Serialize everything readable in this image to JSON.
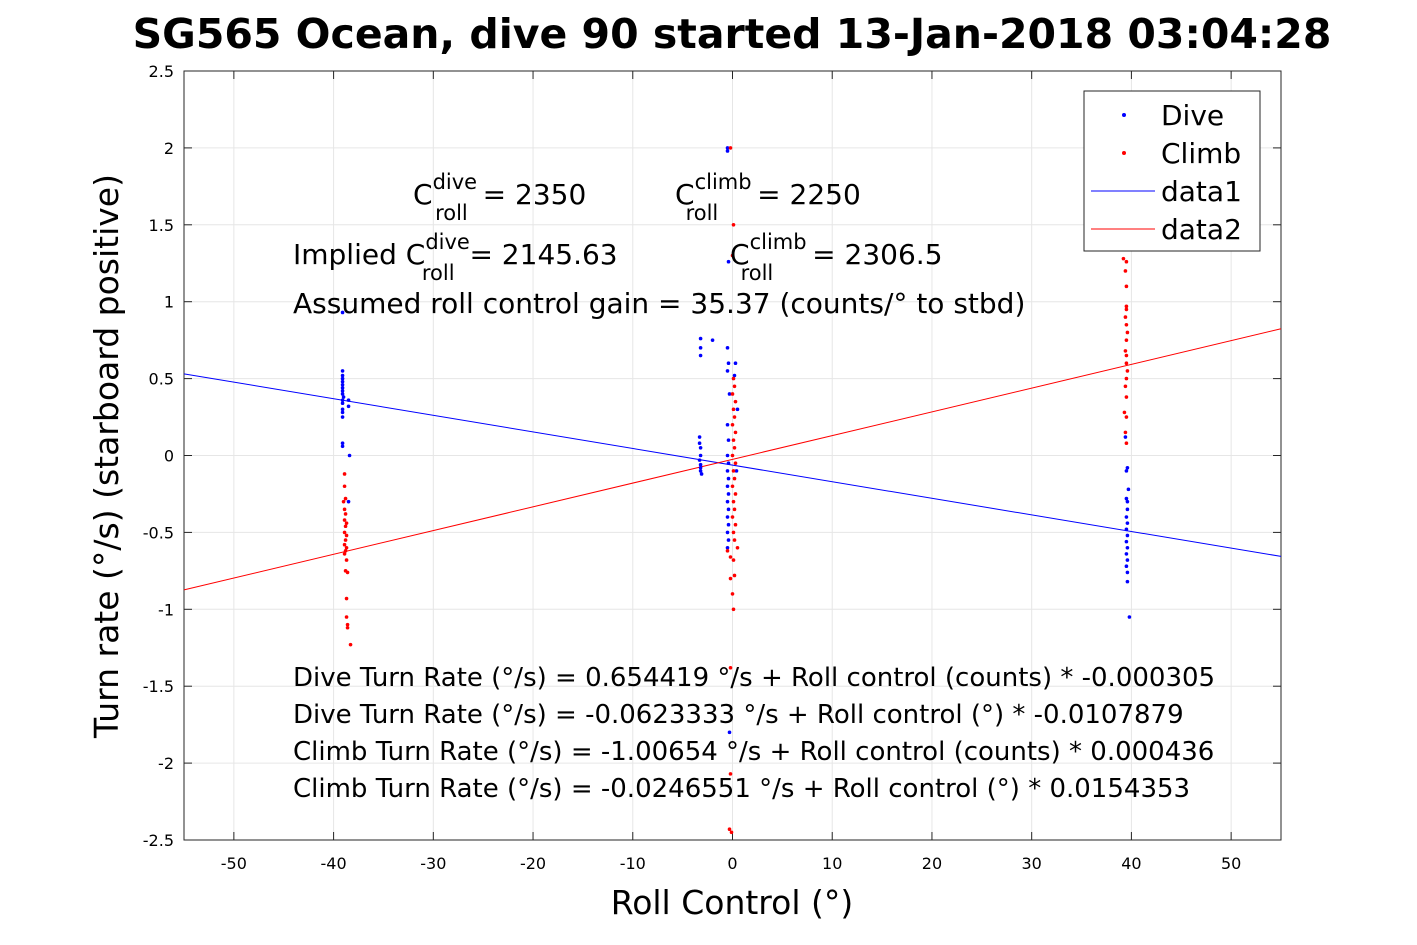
{
  "chart_data": {
    "type": "scatter",
    "title": "SG565 Ocean, dive 90 started 13-Jan-2018 03:04:28",
    "xlabel": "Roll Control (°)",
    "ylabel": "Turn rate (°/s) (starboard positive)",
    "xlim": [
      -55,
      55
    ],
    "ylim": [
      -2.5,
      2.5
    ],
    "xticks": [
      -50,
      -40,
      -30,
      -20,
      -10,
      0,
      10,
      20,
      30,
      40,
      50
    ],
    "yticks": [
      -2.5,
      -2,
      -1.5,
      -1,
      -0.5,
      0,
      0.5,
      1,
      1.5,
      2,
      2.5
    ],
    "grid": true,
    "legend_position": "top-right",
    "series": [
      {
        "name": "Dive",
        "kind": "points",
        "color": "#0000ff",
        "points": [
          [
            -39.1,
            0.93
          ],
          [
            -39.1,
            0.55
          ],
          [
            -39.1,
            0.52
          ],
          [
            -39.1,
            0.5
          ],
          [
            -39.1,
            0.48
          ],
          [
            -39.1,
            0.46
          ],
          [
            -39.1,
            0.44
          ],
          [
            -39.1,
            0.42
          ],
          [
            -39.1,
            0.4
          ],
          [
            -39.0,
            0.38
          ],
          [
            -39.1,
            0.36
          ],
          [
            -39.1,
            0.34
          ],
          [
            -39.1,
            0.3
          ],
          [
            -39.1,
            0.28
          ],
          [
            -39.1,
            0.25
          ],
          [
            -39.1,
            0.08
          ],
          [
            -39.1,
            0.06
          ],
          [
            -38.5,
            0.36
          ],
          [
            -38.5,
            0.32
          ],
          [
            -38.4,
            0.0
          ],
          [
            -38.5,
            -0.3
          ],
          [
            -3.2,
            0.76
          ],
          [
            -3.2,
            0.7
          ],
          [
            -3.2,
            0.65
          ],
          [
            -3.3,
            0.12
          ],
          [
            -3.3,
            0.08
          ],
          [
            -3.2,
            0.05
          ],
          [
            -3.2,
            0.0
          ],
          [
            -3.3,
            -0.03
          ],
          [
            -3.2,
            -0.06
          ],
          [
            -3.2,
            -0.08
          ],
          [
            -3.2,
            -0.1
          ],
          [
            -3.1,
            -0.12
          ],
          [
            -2.0,
            0.75
          ],
          [
            -0.5,
            2.0
          ],
          [
            -0.5,
            1.98
          ],
          [
            -0.4,
            1.26
          ],
          [
            -0.5,
            0.7
          ],
          [
            -0.4,
            0.6
          ],
          [
            -0.5,
            0.55
          ],
          [
            -0.3,
            0.4
          ],
          [
            -0.5,
            0.2
          ],
          [
            -0.4,
            0.1
          ],
          [
            -0.5,
            0.0
          ],
          [
            -0.4,
            -0.05
          ],
          [
            -0.5,
            -0.1
          ],
          [
            -0.4,
            -0.15
          ],
          [
            -0.5,
            -0.2
          ],
          [
            -0.4,
            -0.25
          ],
          [
            -0.5,
            -0.3
          ],
          [
            -0.4,
            -0.35
          ],
          [
            -0.5,
            -0.4
          ],
          [
            -0.4,
            -0.45
          ],
          [
            -0.5,
            -0.5
          ],
          [
            -0.4,
            -0.55
          ],
          [
            -0.5,
            -0.6
          ],
          [
            -0.3,
            -1.8
          ],
          [
            0.3,
            0.6
          ],
          [
            0.5,
            0.3
          ],
          [
            0.4,
            -0.1
          ],
          [
            0.2,
            0.52
          ],
          [
            39.4,
            0.12
          ],
          [
            39.6,
            -0.08
          ],
          [
            39.5,
            -0.1
          ],
          [
            39.7,
            -0.22
          ],
          [
            39.5,
            -0.28
          ],
          [
            39.6,
            -0.3
          ],
          [
            39.6,
            -0.35
          ],
          [
            39.5,
            -0.4
          ],
          [
            39.6,
            -0.44
          ],
          [
            39.5,
            -0.48
          ],
          [
            39.6,
            -0.52
          ],
          [
            39.5,
            -0.56
          ],
          [
            39.6,
            -0.6
          ],
          [
            39.5,
            -0.64
          ],
          [
            39.6,
            -0.68
          ],
          [
            39.5,
            -0.72
          ],
          [
            39.6,
            -0.76
          ],
          [
            39.6,
            -0.82
          ],
          [
            39.8,
            -1.05
          ]
        ]
      },
      {
        "name": "Climb",
        "kind": "points",
        "color": "#ff0000",
        "points": [
          [
            -38.9,
            -0.12
          ],
          [
            -38.9,
            -0.2
          ],
          [
            -38.8,
            -0.28
          ],
          [
            -39.0,
            -0.3
          ],
          [
            -38.9,
            -0.35
          ],
          [
            -38.8,
            -0.38
          ],
          [
            -38.9,
            -0.42
          ],
          [
            -38.7,
            -0.44
          ],
          [
            -38.8,
            -0.46
          ],
          [
            -38.9,
            -0.5
          ],
          [
            -38.7,
            -0.52
          ],
          [
            -38.8,
            -0.55
          ],
          [
            -38.9,
            -0.58
          ],
          [
            -38.7,
            -0.6
          ],
          [
            -38.8,
            -0.62
          ],
          [
            -38.9,
            -0.64
          ],
          [
            -38.7,
            -0.68
          ],
          [
            -38.8,
            -0.75
          ],
          [
            -38.6,
            -0.76
          ],
          [
            -38.7,
            -0.93
          ],
          [
            -38.7,
            -1.05
          ],
          [
            -38.6,
            -1.1
          ],
          [
            -38.6,
            -1.12
          ],
          [
            -38.3,
            -1.23
          ],
          [
            -0.2,
            2.0
          ],
          [
            0.1,
            1.5
          ],
          [
            0.0,
            1.3
          ],
          [
            0.1,
            0.5
          ],
          [
            0.2,
            0.45
          ],
          [
            0.0,
            0.4
          ],
          [
            0.3,
            0.35
          ],
          [
            0.1,
            0.3
          ],
          [
            0.2,
            0.25
          ],
          [
            0.0,
            0.2
          ],
          [
            0.3,
            0.15
          ],
          [
            0.1,
            0.1
          ],
          [
            0.2,
            0.05
          ],
          [
            0.0,
            0.0
          ],
          [
            0.3,
            -0.05
          ],
          [
            0.1,
            -0.1
          ],
          [
            0.2,
            -0.15
          ],
          [
            0.0,
            -0.2
          ],
          [
            0.3,
            -0.25
          ],
          [
            0.1,
            -0.3
          ],
          [
            0.2,
            -0.35
          ],
          [
            0.0,
            -0.4
          ],
          [
            0.3,
            -0.45
          ],
          [
            0.1,
            -0.5
          ],
          [
            0.2,
            -0.55
          ],
          [
            -0.5,
            -0.62
          ],
          [
            0.5,
            -0.6
          ],
          [
            -0.2,
            -0.66
          ],
          [
            0.1,
            -0.68
          ],
          [
            0.2,
            -0.78
          ],
          [
            -0.2,
            -0.8
          ],
          [
            0.0,
            -0.9
          ],
          [
            0.1,
            -1.0
          ],
          [
            -0.2,
            -1.38
          ],
          [
            -0.2,
            -2.07
          ],
          [
            -0.1,
            -2.45
          ],
          [
            -0.3,
            -2.43
          ],
          [
            39.2,
            1.28
          ],
          [
            39.5,
            1.26
          ],
          [
            39.4,
            1.2
          ],
          [
            39.5,
            1.1
          ],
          [
            39.5,
            0.97
          ],
          [
            39.5,
            0.95
          ],
          [
            39.4,
            0.9
          ],
          [
            39.5,
            0.85
          ],
          [
            39.6,
            0.8
          ],
          [
            39.5,
            0.75
          ],
          [
            39.4,
            0.68
          ],
          [
            39.5,
            0.65
          ],
          [
            39.5,
            0.6
          ],
          [
            39.6,
            0.55
          ],
          [
            39.5,
            0.5
          ],
          [
            39.4,
            0.45
          ],
          [
            39.5,
            0.38
          ],
          [
            39.3,
            0.28
          ],
          [
            39.5,
            0.25
          ],
          [
            39.4,
            0.15
          ],
          [
            39.5,
            0.08
          ]
        ]
      },
      {
        "name": "data1",
        "kind": "line",
        "color": "#0000ff",
        "x": [
          -55,
          55
        ],
        "y": [
          0.531,
          -0.656
        ]
      },
      {
        "name": "data2",
        "kind": "line",
        "color": "#ff0000",
        "x": [
          -55,
          55
        ],
        "y": [
          -0.874,
          0.824
        ]
      }
    ],
    "annotations": {
      "c_roll_dive_base": "C",
      "c_roll_dive_sup": "dive",
      "c_roll_dive_sub": "roll",
      "c_roll_dive_value": " = 2350",
      "c_roll_climb_base": "C",
      "c_roll_climb_sup": "climb",
      "c_roll_climb_sub": "roll",
      "c_roll_climb_value": " = 2250",
      "implied_prefix": "Implied C",
      "implied_dive_sup": "dive",
      "implied_dive_sub": "roll",
      "implied_dive_value": " = 2145.63",
      "implied_climb_base": "C",
      "implied_climb_sup": "climb",
      "implied_climb_sub": "roll",
      "implied_climb_value": " = 2306.5",
      "gain_line": "Assumed roll control gain = 35.37 (counts/° to stbd)",
      "equations": [
        "Dive Turn Rate (°/s) = 0.654419 °/s + Roll control (counts) * -0.000305",
        "Dive Turn Rate (°/s) = -0.0623333 °/s + Roll control (°) * -0.0107879",
        "Climb Turn Rate (°/s) = -1.00654 °/s + Roll control (counts) * 0.000436",
        "Climb Turn Rate (°/s) = -0.0246551 °/s + Roll control (°) * 0.0154353"
      ]
    }
  }
}
